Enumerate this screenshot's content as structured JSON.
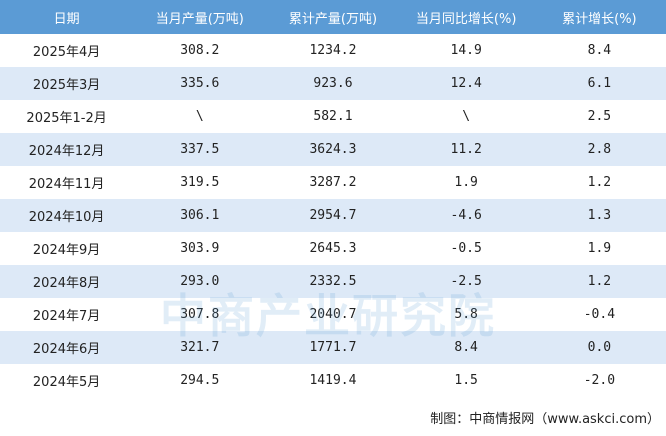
{
  "table": {
    "header": [
      "日期",
      "当月产量(万吨)",
      "累计产量(万吨)",
      "当月同比增长(%)",
      "累计增长(%)"
    ],
    "rows": [
      [
        "2025年4月",
        "308.2",
        "1234.2",
        "14.9",
        "8.4"
      ],
      [
        "2025年3月",
        "335.6",
        "923.6",
        "12.4",
        "6.1"
      ],
      [
        "2025年1-2月",
        "\\",
        "582.1",
        "\\",
        "2.5"
      ],
      [
        "2024年12月",
        "337.5",
        "3624.3",
        "11.2",
        "2.8"
      ],
      [
        "2024年11月",
        "319.5",
        "3287.2",
        "1.9",
        "1.2"
      ],
      [
        "2024年10月",
        "306.1",
        "2954.7",
        "-4.6",
        "1.3"
      ],
      [
        "2024年9月",
        "303.9",
        "2645.3",
        "-0.5",
        "1.9"
      ],
      [
        "2024年8月",
        "293.0",
        "2332.5",
        "-2.5",
        "1.2"
      ],
      [
        "2024年7月",
        "307.8",
        "2040.7",
        "5.8",
        "-0.4"
      ],
      [
        "2024年6月",
        "321.7",
        "1771.7",
        "8.4",
        "0.0"
      ],
      [
        "2024年5月",
        "294.5",
        "1419.4",
        "1.5",
        "-2.0"
      ]
    ]
  },
  "watermark": "中商产业研究院",
  "source": "制图：中商情报网（www.askci.com）"
}
